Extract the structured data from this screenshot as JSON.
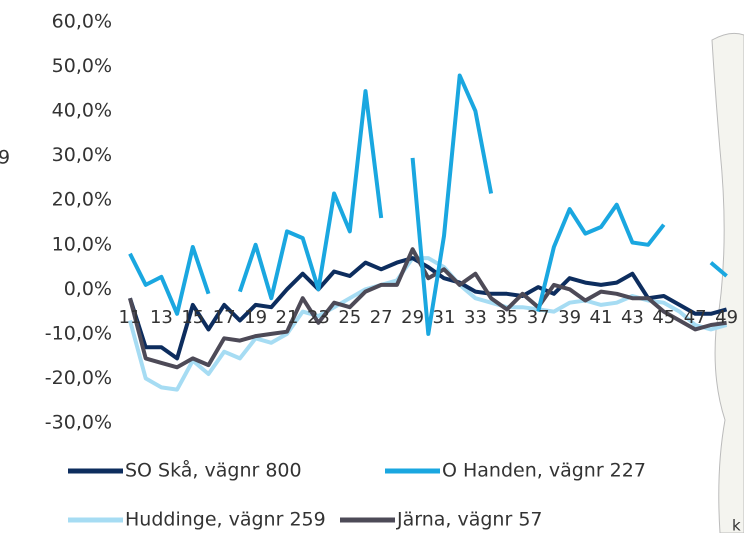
{
  "chart_data": {
    "type": "line",
    "categories": [
      "11",
      null,
      "13",
      null,
      "15",
      null,
      "17",
      null,
      "19",
      null,
      "21",
      null,
      "23",
      null,
      "25",
      null,
      "27",
      null,
      "29",
      null,
      "31",
      null,
      "33",
      null,
      "35",
      null,
      "37",
      null,
      "39",
      null,
      "41",
      null,
      "43",
      null,
      "45",
      null,
      "47",
      null,
      "49"
    ],
    "series": [
      {
        "name": "SO Skå, vägnr 800",
        "color": "#0d2d5e",
        "values": [
          -2,
          -13,
          -13,
          -15.5,
          -3.5,
          -9,
          -3.5,
          -7,
          -3.5,
          -4,
          0,
          3.5,
          0,
          4,
          3,
          6,
          4.5,
          6,
          7,
          5,
          2.5,
          1.5,
          -0.5,
          -1,
          -1,
          -1.5,
          0.5,
          -1,
          2.5,
          1.5,
          1,
          1.5,
          3.5,
          -2,
          -1.5,
          -3.5,
          -5.5,
          -5.5,
          -4.5
        ]
      },
      {
        "name": "O Handen, vägnr 227",
        "color": "#1aa7e0",
        "values": [
          8,
          1,
          2.8,
          -5.5,
          9.5,
          -1,
          null,
          -0.5,
          10,
          -2,
          13,
          11.5,
          0,
          21.5,
          13,
          44.5,
          16,
          null,
          29.5,
          -10,
          12,
          48,
          40,
          21.5,
          null,
          null,
          -5,
          9.5,
          18,
          12.5,
          14,
          19,
          10.5,
          10,
          14.5,
          null,
          null,
          6,
          3
        ]
      },
      {
        "name": "Huddinge, vägnr 259",
        "color": "#a6dcf3",
        "values": [
          -7,
          -20,
          -22,
          -22.5,
          -16,
          -19,
          -14,
          -15.5,
          -11,
          -12,
          -10,
          -5,
          -6,
          -4,
          -2,
          0,
          1,
          2,
          7,
          7,
          5,
          1,
          -2,
          -3,
          -4,
          -4,
          -4.5,
          -5,
          -3,
          -2.5,
          -3.5,
          -3,
          -1.5,
          -2.5,
          -3,
          -5,
          -8,
          -9,
          -8
        ]
      },
      {
        "name": "Järna, vägnr 57",
        "color": "#4d4a57",
        "values": [
          -2,
          -15.5,
          -16.5,
          -17.5,
          -15.5,
          -17,
          -11,
          -11.5,
          -10.5,
          -10,
          -9.5,
          -2,
          -7.5,
          -3,
          -4,
          -0.5,
          1,
          1,
          9,
          2.5,
          4.5,
          1,
          3.5,
          -2,
          -4.5,
          -1,
          -4,
          1,
          0,
          -2.5,
          -0.5,
          -1,
          -2,
          -2,
          -5,
          -7,
          -9,
          -8,
          -7.5
        ]
      }
    ],
    "ylim": [
      -30,
      60
    ],
    "yticks": [
      {
        "value": -30,
        "label": "-30,0%"
      },
      {
        "value": -20,
        "label": "-20,0%"
      },
      {
        "value": -10,
        "label": "-10,0%"
      },
      {
        "value": 0,
        "label": "0,0%"
      },
      {
        "value": 10,
        "label": "10,0%"
      },
      {
        "value": 20,
        "label": "20,0%"
      },
      {
        "value": 30,
        "label": "30,0%"
      },
      {
        "value": 40,
        "label": "40,0%"
      },
      {
        "value": 50,
        "label": "50,0%"
      },
      {
        "value": 60,
        "label": "60,0%"
      }
    ],
    "grid": false,
    "clipped_texts": [
      "9",
      "k"
    ]
  }
}
